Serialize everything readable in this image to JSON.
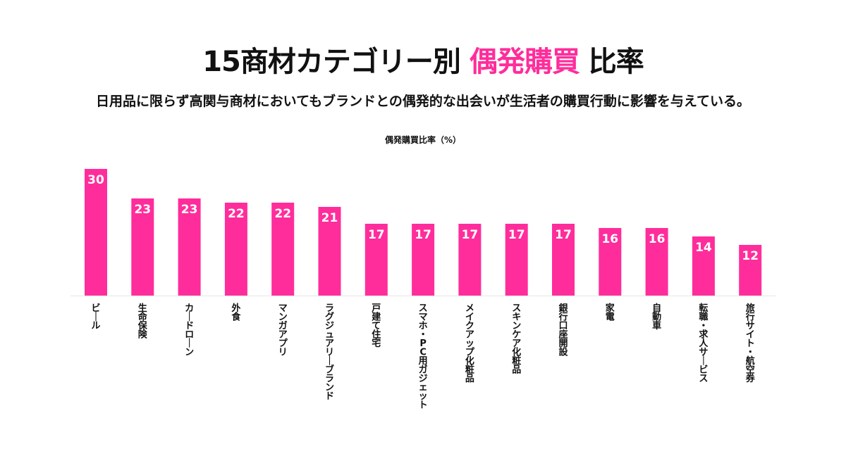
{
  "header": {
    "title_prefix": "15商材カテゴリー別",
    "title_accent": "偶発購買",
    "title_suffix": "比率",
    "subtitle": "日用品に限らず高関与商材においてもブランドとの偶発的な出会いが生活者の購買行動に影響を与えている。",
    "accent_color": "#ff2d9b"
  },
  "chart_data": {
    "type": "bar",
    "ylabel": "偶発購買比率（%）",
    "ylim": [
      0,
      30
    ],
    "grid": false,
    "legend": "none",
    "bar_color": "#ff2d9b",
    "categories": [
      "ビール",
      "生命保険",
      "カードローン",
      "外食",
      "マンガアプリ",
      "ラグジュアリーブランド",
      "戸建て住宅",
      "スマホ・PC用ガジェット",
      "メイクアップ化粧品",
      "スキンケア化粧品",
      "銀行口座開設",
      "家電",
      "自動車",
      "転職・求人サービス",
      "旅行サイト・航空券"
    ],
    "values": [
      30,
      23,
      23,
      22,
      22,
      21,
      17,
      17,
      17,
      17,
      17,
      16,
      16,
      14,
      12
    ]
  }
}
